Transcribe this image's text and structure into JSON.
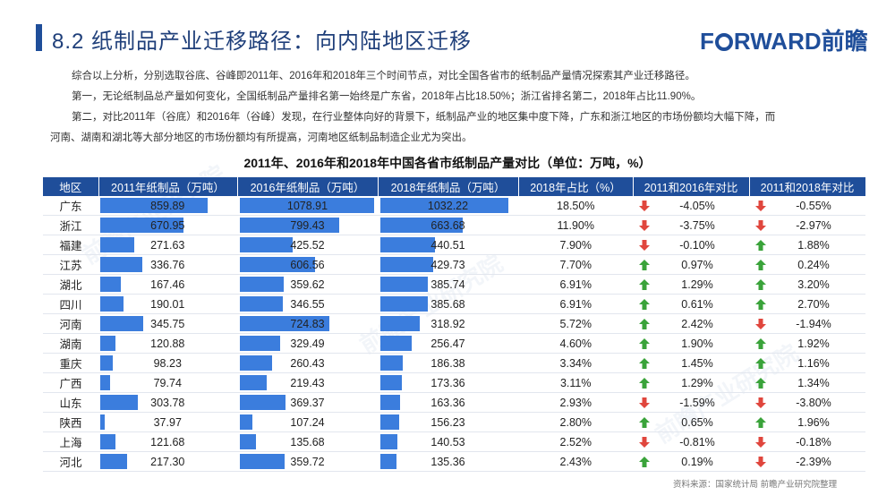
{
  "header": {
    "title": "8.2 纸制品产业迁移路径：向内陆地区迁移",
    "logo": "F",
    "logo_rest": "RWARD前瞻"
  },
  "intro": {
    "p1": "综合以上分析，分别选取谷底、谷峰即2011年、2016年和2018年三个时间节点，对比全国各省市的纸制品产量情况探索其产业迁移路径。",
    "p2": "第一，无论纸制品总产量如何变化，全国纸制品产量排名第一始终是广东省，2018年占比18.50%；浙江省排名第二，2018年占比11.90%。",
    "p3": "第二，对比2011年（谷底）和2016年（谷峰）发现，在行业整体向好的背景下，纸制品产业的地区集中度下降，广东和浙江地区的市场份额均大幅下降，而",
    "p4": "河南、湖南和湖北等大部分地区的市场份额均有所提高，河南地区纸制品制造企业尤为突出。"
  },
  "table": {
    "title": "2011年、2016年和2018年中国各省市纸制品产量对比（单位：万吨，%）",
    "headers": [
      "地区",
      "2011年纸制品（万吨）",
      "2016年纸制品（万吨）",
      "2018年纸制品（万吨）",
      "2018年占比（%）",
      "2011和2016年对比",
      "2011和2018年对比"
    ],
    "rows": [
      {
        "region": "广东",
        "v2011": "859.89",
        "v2016": "1078.91",
        "v2018": "1032.22",
        "share": "18.50%",
        "c1": "-4.05%",
        "c2": "-0.55%"
      },
      {
        "region": "浙江",
        "v2011": "670.95",
        "v2016": "799.43",
        "v2018": "663.68",
        "share": "11.90%",
        "c1": "-3.75%",
        "c2": "-2.97%"
      },
      {
        "region": "福建",
        "v2011": "271.63",
        "v2016": "425.52",
        "v2018": "440.51",
        "share": "7.90%",
        "c1": "-0.10%",
        "c2": "1.88%"
      },
      {
        "region": "江苏",
        "v2011": "336.76",
        "v2016": "606.56",
        "v2018": "429.73",
        "share": "7.70%",
        "c1": "0.97%",
        "c2": "0.24%"
      },
      {
        "region": "湖北",
        "v2011": "167.46",
        "v2016": "359.62",
        "v2018": "385.74",
        "share": "6.91%",
        "c1": "1.29%",
        "c2": "3.20%"
      },
      {
        "region": "四川",
        "v2011": "190.01",
        "v2016": "346.55",
        "v2018": "385.68",
        "share": "6.91%",
        "c1": "0.61%",
        "c2": "2.70%"
      },
      {
        "region": "河南",
        "v2011": "345.75",
        "v2016": "724.83",
        "v2018": "318.92",
        "share": "5.72%",
        "c1": "2.42%",
        "c2": "-1.94%"
      },
      {
        "region": "湖南",
        "v2011": "120.88",
        "v2016": "329.49",
        "v2018": "256.47",
        "share": "4.60%",
        "c1": "1.90%",
        "c2": "1.92%"
      },
      {
        "region": "重庆",
        "v2011": "98.23",
        "v2016": "260.43",
        "v2018": "186.38",
        "share": "3.34%",
        "c1": "1.45%",
        "c2": "1.16%"
      },
      {
        "region": "广西",
        "v2011": "79.74",
        "v2016": "219.43",
        "v2018": "173.36",
        "share": "3.11%",
        "c1": "1.29%",
        "c2": "1.34%"
      },
      {
        "region": "山东",
        "v2011": "303.78",
        "v2016": "369.37",
        "v2018": "163.36",
        "share": "2.93%",
        "c1": "-1.59%",
        "c2": "-3.80%"
      },
      {
        "region": "陕西",
        "v2011": "37.97",
        "v2016": "107.24",
        "v2018": "156.23",
        "share": "2.80%",
        "c1": "0.65%",
        "c2": "1.96%"
      },
      {
        "region": "上海",
        "v2011": "121.68",
        "v2016": "135.68",
        "v2018": "140.53",
        "share": "2.52%",
        "c1": "-0.81%",
        "c2": "-0.18%"
      },
      {
        "region": "河北",
        "v2011": "217.30",
        "v2016": "359.72",
        "v2018": "135.36",
        "share": "2.43%",
        "c1": "0.19%",
        "c2": "-2.39%"
      }
    ]
  },
  "colors": {
    "brand": "#1f4e9a",
    "bar": "#3b7ddd",
    "up": "#3aa33a",
    "down": "#e0463d"
  },
  "icons": {
    "up": "arrow-up-icon",
    "down": "arrow-down-icon"
  },
  "source": "资料来源：国家统计局 前瞻产业研究院整理",
  "watermark": "前瞻产业研究院"
}
